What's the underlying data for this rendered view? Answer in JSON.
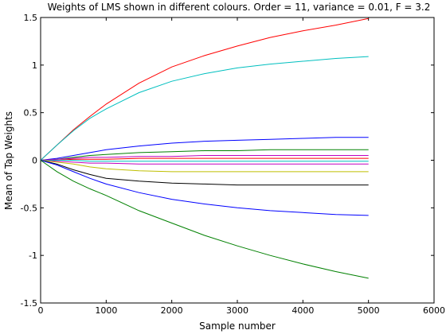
{
  "chart_data": {
    "type": "line",
    "title": "Weights of LMS shown in different colours. Order = 11, variance = 0.01, F = 3.2",
    "xlabel": "Sample number",
    "ylabel": "Mean of Tap Weights",
    "xlim": [
      0,
      6000
    ],
    "ylim": [
      -1.5,
      1.5
    ],
    "xticks": [
      0,
      1000,
      2000,
      3000,
      4000,
      5000,
      6000
    ],
    "yticks": [
      -1.5,
      -1,
      -0.5,
      0,
      0.5,
      1,
      1.5
    ],
    "xtick_labels": [
      "0",
      "1000",
      "2000",
      "3000",
      "4000",
      "5000",
      "6000"
    ],
    "ytick_labels": [
      "-1.5",
      "-1",
      "-0.5",
      "0",
      "0.5",
      "1",
      "1.5"
    ],
    "grid": false,
    "legend": false,
    "x": [
      0,
      250,
      500,
      750,
      1000,
      1500,
      2000,
      2500,
      3000,
      3500,
      4000,
      4500,
      5000
    ],
    "series": [
      {
        "color": "#ff0000",
        "values": [
          0,
          0.16,
          0.32,
          0.46,
          0.59,
          0.81,
          0.98,
          1.1,
          1.2,
          1.29,
          1.36,
          1.42,
          1.49
        ]
      },
      {
        "color": "#00bfbf",
        "values": [
          0,
          0.16,
          0.31,
          0.44,
          0.54,
          0.71,
          0.83,
          0.91,
          0.97,
          1.01,
          1.04,
          1.07,
          1.09
        ]
      },
      {
        "color": "#0000ff",
        "values": [
          0,
          0.02,
          0.05,
          0.08,
          0.11,
          0.15,
          0.18,
          0.2,
          0.21,
          0.22,
          0.23,
          0.24,
          0.24
        ]
      },
      {
        "color": "#008000",
        "values": [
          0,
          0.01,
          0.03,
          0.05,
          0.06,
          0.08,
          0.09,
          0.1,
          0.1,
          0.11,
          0.11,
          0.11,
          0.11
        ]
      },
      {
        "color": "#bf00bf",
        "values": [
          0,
          0.01,
          0.02,
          0.03,
          0.03,
          0.04,
          0.04,
          0.05,
          0.05,
          0.05,
          0.05,
          0.05,
          0.05
        ]
      },
      {
        "color": "#ff0000",
        "values": [
          0,
          0.0,
          0.01,
          0.01,
          0.01,
          0.02,
          0.02,
          0.02,
          0.02,
          0.02,
          0.02,
          0.02,
          0.02
        ]
      },
      {
        "color": "#00bfbf",
        "values": [
          0,
          0.0,
          0.0,
          -0.01,
          -0.01,
          -0.01,
          -0.01,
          -0.01,
          -0.01,
          -0.01,
          -0.01,
          -0.01,
          -0.01
        ]
      },
      {
        "color": "#bf00bf",
        "values": [
          0,
          -0.01,
          -0.02,
          -0.03,
          -0.03,
          -0.04,
          -0.04,
          -0.04,
          -0.04,
          -0.04,
          -0.04,
          -0.04,
          -0.04
        ]
      },
      {
        "color": "#bfbf00",
        "values": [
          0,
          -0.02,
          -0.04,
          -0.07,
          -0.09,
          -0.11,
          -0.12,
          -0.12,
          -0.12,
          -0.12,
          -0.12,
          -0.12,
          -0.12
        ]
      },
      {
        "color": "#000000",
        "values": [
          0,
          -0.04,
          -0.1,
          -0.15,
          -0.19,
          -0.22,
          -0.24,
          -0.25,
          -0.26,
          -0.26,
          -0.26,
          -0.26,
          -0.26
        ]
      },
      {
        "color": "#0000ff",
        "values": [
          0,
          -0.05,
          -0.12,
          -0.19,
          -0.25,
          -0.34,
          -0.41,
          -0.46,
          -0.5,
          -0.53,
          -0.55,
          -0.57,
          -0.58
        ]
      },
      {
        "color": "#008000",
        "values": [
          0,
          -0.12,
          -0.22,
          -0.3,
          -0.37,
          -0.53,
          -0.66,
          -0.79,
          -0.9,
          -1.0,
          -1.09,
          -1.17,
          -1.24
        ]
      }
    ]
  }
}
